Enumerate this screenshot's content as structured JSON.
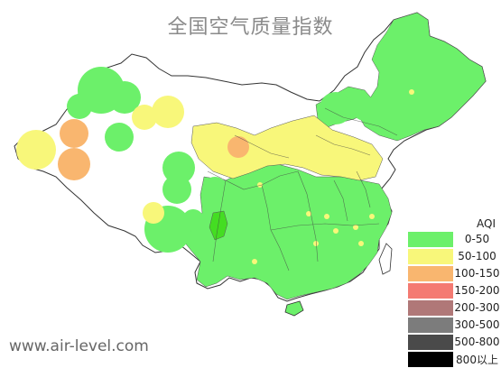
{
  "map": {
    "title": "全国空气质量指数",
    "watermark": "www.air-level.com"
  },
  "legend": {
    "title": "AQI",
    "items": [
      {
        "label": "0-50",
        "color": "#6cf06a"
      },
      {
        "label": "50-100",
        "color": "#f8f77a"
      },
      {
        "label": "100-150",
        "color": "#f9b66f"
      },
      {
        "label": "150-200",
        "color": "#f47a72"
      },
      {
        "label": "200-300",
        "color": "#b07878"
      },
      {
        "label": "300-500",
        "color": "#7c7c7c"
      },
      {
        "label": "500-800",
        "color": "#4a4a4a"
      },
      {
        "label": "800以上",
        "color": "#000000"
      }
    ]
  },
  "colors": {
    "good": "#6cf06a",
    "moderate": "#f8f77a",
    "sensitive": "#f9b66f",
    "dark_green": "#44dd22",
    "border": "#333333"
  }
}
